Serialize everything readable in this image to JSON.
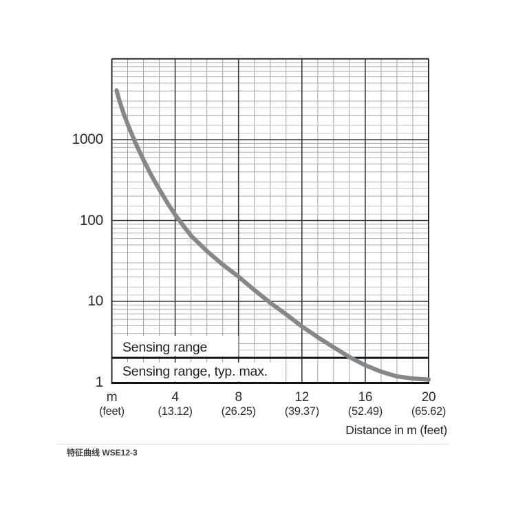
{
  "caption": "特征曲线 WSE12-3",
  "chart_data": {
    "type": "line",
    "title": "",
    "xlabel": "Distance in m (feet)",
    "ylabel": "",
    "grid": "log-y 4 decades, linear-x, minor gridlines on",
    "legend_position": "none",
    "x_axis": {
      "min": 0,
      "max": 20,
      "minor_step_m": 1,
      "major_step_m": 4,
      "unit_tick": {
        "m": 0,
        "label": "m",
        "sub": "(feet)"
      },
      "ticks": [
        {
          "m": 4,
          "label": "4",
          "sub": "(13.12)"
        },
        {
          "m": 8,
          "label": "8",
          "sub": "(26.25)"
        },
        {
          "m": 12,
          "label": "12",
          "sub": "(39.37)"
        },
        {
          "m": 16,
          "label": "16",
          "sub": "(52.49)"
        },
        {
          "m": 20,
          "label": "20",
          "sub": "(65.62)"
        }
      ]
    },
    "y_axis": {
      "scale": "log",
      "min": 1,
      "max": 10000,
      "ticks": [
        {
          "v": 1000,
          "label": "1000"
        },
        {
          "v": 100,
          "label": "100"
        },
        {
          "v": 10,
          "label": "10"
        },
        {
          "v": 1,
          "label": "1"
        }
      ],
      "minor_factors": [
        1.2,
        1.5,
        2,
        2.5,
        3,
        4,
        5,
        6,
        7,
        8,
        9
      ],
      "light_factors": [
        1.2,
        1.5,
        2.5
      ]
    },
    "threshold": {
      "value": 2,
      "label_above": "Sensing range",
      "label_below": "Sensing range, typ. max."
    },
    "series": [
      {
        "name": "characteristic-curve",
        "x": [
          0.3,
          0.5,
          0.75,
          1,
          1.5,
          2,
          2.5,
          3,
          3.5,
          4,
          4.5,
          5,
          6,
          7,
          8,
          9,
          10,
          11,
          12,
          13,
          14,
          15,
          16,
          17,
          18,
          19,
          20
        ],
        "y": [
          4070,
          2950,
          2100,
          1560,
          905,
          560,
          360,
          243,
          166,
          118,
          87,
          65,
          42,
          28.5,
          20.2,
          13.8,
          9.6,
          6.9,
          4.9,
          3.6,
          2.7,
          2.05,
          1.62,
          1.35,
          1.18,
          1.11,
          1.08
        ]
      }
    ],
    "colors": {
      "curve": "#85888b",
      "grid_major": "#39393b",
      "grid_minor": "#a8abad",
      "grid_minor_light": "#c7c9cb",
      "grid_minor_vertical": "#9fa2a4",
      "frame": "#2c2c2e",
      "threshold_line": "#141414",
      "text": "#2d2d2d",
      "divider": "#dcdcdc",
      "background": "#ffffff"
    }
  }
}
